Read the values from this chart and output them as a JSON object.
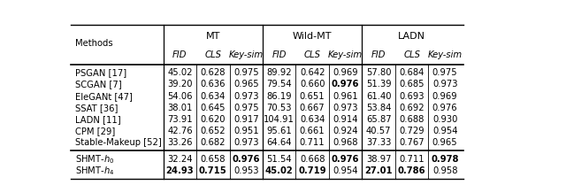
{
  "methods_top": [
    "PSGAN [17]",
    "SCGAN [7]",
    "EleGANt [47]",
    "SSAT [36]",
    "LADN [11]",
    "CPM [29]",
    "Stable-Makeup [52]"
  ],
  "methods_bot": [
    "SHMT-$h_0$",
    "SHMT-$h_4$"
  ],
  "data_top": [
    [
      45.02,
      0.628,
      0.975,
      89.92,
      0.642,
      0.969,
      57.8,
      0.684,
      0.975
    ],
    [
      39.2,
      0.636,
      0.965,
      79.54,
      0.66,
      0.976,
      51.39,
      0.685,
      0.973
    ],
    [
      54.06,
      0.634,
      0.973,
      86.19,
      0.651,
      0.961,
      61.4,
      0.693,
      0.969
    ],
    [
      38.01,
      0.645,
      0.975,
      70.53,
      0.667,
      0.973,
      53.84,
      0.692,
      0.976
    ],
    [
      73.91,
      0.62,
      0.917,
      104.91,
      0.634,
      0.914,
      65.87,
      0.688,
      0.93
    ],
    [
      42.76,
      0.652,
      0.951,
      95.61,
      0.661,
      0.924,
      40.57,
      0.729,
      0.954
    ],
    [
      33.26,
      0.682,
      0.973,
      64.64,
      0.711,
      0.968,
      37.33,
      0.767,
      0.965
    ]
  ],
  "data_bot": [
    [
      32.24,
      0.658,
      0.976,
      51.54,
      0.668,
      0.976,
      38.97,
      0.711,
      0.978
    ],
    [
      24.93,
      0.715,
      0.953,
      45.02,
      0.719,
      0.954,
      27.01,
      0.786,
      0.958
    ]
  ],
  "bold_top": [
    [
      false,
      false,
      false,
      false,
      false,
      false,
      false,
      false,
      false
    ],
    [
      false,
      false,
      false,
      false,
      false,
      true,
      false,
      false,
      false
    ],
    [
      false,
      false,
      false,
      false,
      false,
      false,
      false,
      false,
      false
    ],
    [
      false,
      false,
      false,
      false,
      false,
      false,
      false,
      false,
      false
    ],
    [
      false,
      false,
      false,
      false,
      false,
      false,
      false,
      false,
      false
    ],
    [
      false,
      false,
      false,
      false,
      false,
      false,
      false,
      false,
      false
    ],
    [
      false,
      false,
      false,
      false,
      false,
      false,
      false,
      false,
      false
    ]
  ],
  "bold_bot": [
    [
      false,
      false,
      true,
      false,
      false,
      true,
      false,
      false,
      true
    ],
    [
      true,
      true,
      false,
      true,
      true,
      false,
      true,
      true,
      false
    ]
  ],
  "col_groups": [
    "MT",
    "Wild-MT",
    "LADN"
  ],
  "col_labels": [
    "FID",
    "CLS",
    "Key-sim",
    "FID",
    "CLS",
    "Key-sim",
    "FID",
    "CLS",
    "Key-sim"
  ],
  "figsize": [
    6.4,
    2.09
  ],
  "dpi": 100,
  "fs_data": 7.2,
  "fs_header": 8.0,
  "fs_method": 7.2
}
